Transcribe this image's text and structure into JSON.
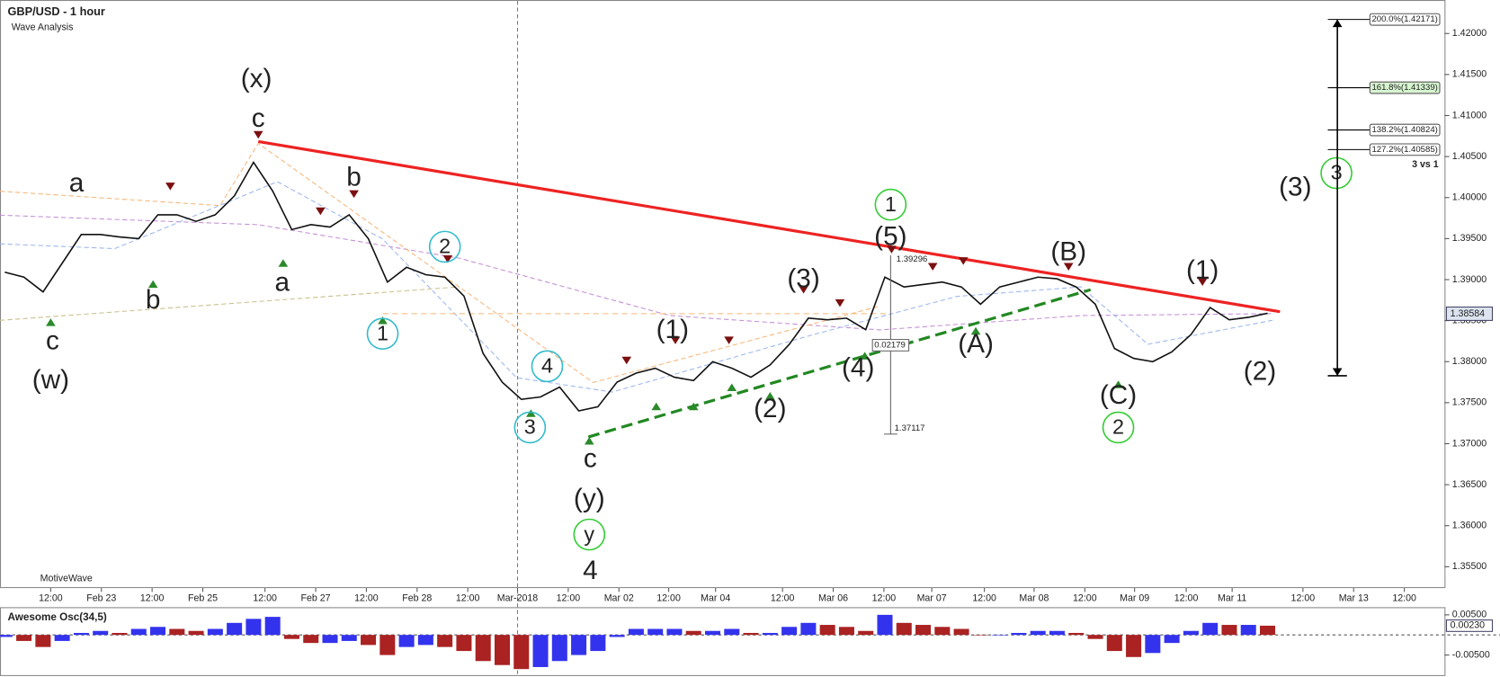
{
  "header": {
    "title": "GBP/USD - 1 hour",
    "subtitle": "Wave Analysis",
    "watermark": "MotiveWave"
  },
  "chart_data": [
    {
      "type": "line",
      "color": "#111111",
      "values": [
        1.3909,
        1.3903,
        1.3885,
        1.392,
        1.3955,
        1.3955,
        1.3952,
        1.395,
        1.3979,
        1.3979,
        1.3971,
        1.3979,
        1.4002,
        1.4043,
        1.4008,
        1.3961,
        1.3967,
        1.3964,
        1.3979,
        1.395,
        1.3897,
        1.3915,
        1.3906,
        1.3903,
        1.388,
        1.381,
        1.3775,
        1.3754,
        1.3757,
        1.3769,
        1.374,
        1.3745,
        1.3775,
        1.3786,
        1.3792,
        1.3781,
        1.3777,
        1.38,
        1.3792,
        1.3781,
        1.3796,
        1.3821,
        1.3853,
        1.3851,
        1.3853,
        1.3839,
        1.3903,
        1.3891,
        1.3894,
        1.3897,
        1.3891,
        1.387,
        1.3891,
        1.3897,
        1.3903,
        1.3901,
        1.3891,
        1.387,
        1.3816,
        1.3804,
        1.38,
        1.3812,
        1.3833,
        1.3866,
        1.3851,
        1.3854,
        1.3859
      ],
      "ylim": [
        1.3524,
        1.4235
      ],
      "yticks": [
        {
          "value": 1.355,
          "label": "1.35500"
        },
        {
          "value": 1.36,
          "label": "1.36000"
        },
        {
          "value": 1.365,
          "label": "1.36500"
        },
        {
          "value": 1.37,
          "label": "1.37000"
        },
        {
          "value": 1.375,
          "label": "1.37500"
        },
        {
          "value": 1.38,
          "label": "1.38000"
        },
        {
          "value": 1.385,
          "label": "1.38500"
        },
        {
          "value": 1.39,
          "label": "1.39000"
        },
        {
          "value": 1.395,
          "label": "1.39500"
        },
        {
          "value": 1.4,
          "label": "1.40000"
        },
        {
          "value": 1.405,
          "label": "1.40500"
        },
        {
          "value": 1.41,
          "label": "1.41000"
        },
        {
          "value": 1.415,
          "label": "1.41500"
        },
        {
          "value": 1.42,
          "label": "1.42000"
        }
      ],
      "last": {
        "value": 1.38584,
        "label": "1.38584"
      },
      "x_labels": [
        "12:00",
        "Feb 23",
        "12:00",
        "Feb 25",
        "12:00",
        "Feb 27",
        "12:00",
        "Feb 28",
        "12:00",
        "Mar-2018",
        "12:00",
        "Mar 02",
        "12:00",
        "Mar 04",
        "12:00",
        "Mar 06",
        "12:00",
        "Mar 07",
        "12:00",
        "Mar 08",
        "12:00",
        "Mar 09",
        "12:00",
        "Mar 11",
        "12:00",
        "Mar 13",
        "12:00"
      ],
      "fib_levels": [
        {
          "value": 1.42171,
          "label": "200.0%(1.42171)"
        },
        {
          "value": 1.41339,
          "label": "161.8%(1.41339)"
        },
        {
          "value": 1.40824,
          "label": "138.2%(1.40824)"
        },
        {
          "value": 1.40585,
          "label": "127.2%(1.40585)"
        }
      ],
      "fib_note": "3 vs 1",
      "measure": [
        {
          "value": 1.39296,
          "label": "1.39296"
        },
        {
          "value": 1.37117,
          "label": "1.37117"
        }
      ],
      "measure_diff": "0.02179",
      "annotations": [
        {
          "text": "(x)",
          "color": "#999999",
          "circled": false
        },
        {
          "text": "c",
          "color": "#f7931e",
          "circled": false
        },
        {
          "text": "a",
          "color": "#f7931e",
          "circled": false
        },
        {
          "text": "b",
          "color": "#f7931e",
          "circled": false
        },
        {
          "text": "a",
          "color": "#f7931e",
          "circled": false
        },
        {
          "text": "c",
          "color": "#f7931e",
          "circled": false
        },
        {
          "text": "(w)",
          "color": "#999999",
          "circled": false
        },
        {
          "text": "b",
          "color": "#f7931e",
          "circled": false
        },
        {
          "text": "2",
          "color": "#33bbcc",
          "circled": true
        },
        {
          "text": "1",
          "color": "#33bbcc",
          "circled": true
        },
        {
          "text": "4",
          "color": "#33bbcc",
          "circled": true
        },
        {
          "text": "3",
          "color": "#33bbcc",
          "circled": true
        },
        {
          "text": "c",
          "color": "#f7931e",
          "circled": false
        },
        {
          "text": "(y)",
          "color": "#999999",
          "circled": false
        },
        {
          "text": "y",
          "color": "#33cc33",
          "circled": true
        },
        {
          "text": "4",
          "color": "#7b1010",
          "circled": false
        },
        {
          "text": "(1)",
          "color": "#999999",
          "circled": false
        },
        {
          "text": "(2)",
          "color": "#999999",
          "circled": false
        },
        {
          "text": "(3)",
          "color": "#999999",
          "circled": false
        },
        {
          "text": "(5)",
          "color": "#999999",
          "circled": false
        },
        {
          "text": "1",
          "color": "#33cc33",
          "circled": true
        },
        {
          "text": "(4)",
          "color": "#999999",
          "circled": false
        },
        {
          "text": "(A)",
          "color": "#999999",
          "circled": false
        },
        {
          "text": "(B)",
          "color": "#999999",
          "circled": false
        },
        {
          "text": "(C)",
          "color": "#999999",
          "circled": false
        },
        {
          "text": "2",
          "color": "#33cc33",
          "circled": true
        },
        {
          "text": "(1)",
          "color": "#999999",
          "circled": false
        },
        {
          "text": "(2)",
          "color": "#999999",
          "circled": false
        },
        {
          "text": "(3)",
          "color": "#999999",
          "circled": false
        },
        {
          "text": "3",
          "color": "#33cc33",
          "circled": true
        }
      ]
    },
    {
      "type": "bar",
      "title": "Awesome Osc(34,5)",
      "up_color": "#3333ee",
      "down_color": "#aa2222",
      "values": [
        -0.0005,
        -0.0015,
        -0.003,
        -0.0015,
        0.0005,
        0.001,
        0.0005,
        0.0015,
        0.002,
        0.0015,
        0.001,
        0.0015,
        0.003,
        0.004,
        0.0045,
        -0.001,
        -0.002,
        -0.002,
        -0.0015,
        -0.0025,
        -0.005,
        -0.003,
        -0.0025,
        -0.003,
        -0.004,
        -0.0065,
        -0.0075,
        -0.0085,
        -0.008,
        -0.0065,
        -0.005,
        -0.004,
        -0.0005,
        0.0015,
        0.0015,
        0.0015,
        0.001,
        0.001,
        0.0015,
        0.0005,
        0.0005,
        0.002,
        0.003,
        0.0025,
        0.002,
        0.001,
        0.005,
        0.003,
        0.0025,
        0.002,
        0.0015,
        0,
        0,
        0.0005,
        0.001,
        0.001,
        0.0005,
        -0.001,
        -0.004,
        -0.0055,
        -0.0045,
        -0.002,
        0.001,
        0.003,
        0.0025,
        0.0025,
        0.0023
      ],
      "ylim": [
        -0.00976,
        0.00643
      ],
      "yticks": [
        {
          "value": 0.005,
          "label": "0.00500"
        },
        {
          "value": -0.005,
          "label": "-0.00500"
        }
      ],
      "last": {
        "value": 0.0023,
        "label": "0.00230"
      }
    }
  ]
}
